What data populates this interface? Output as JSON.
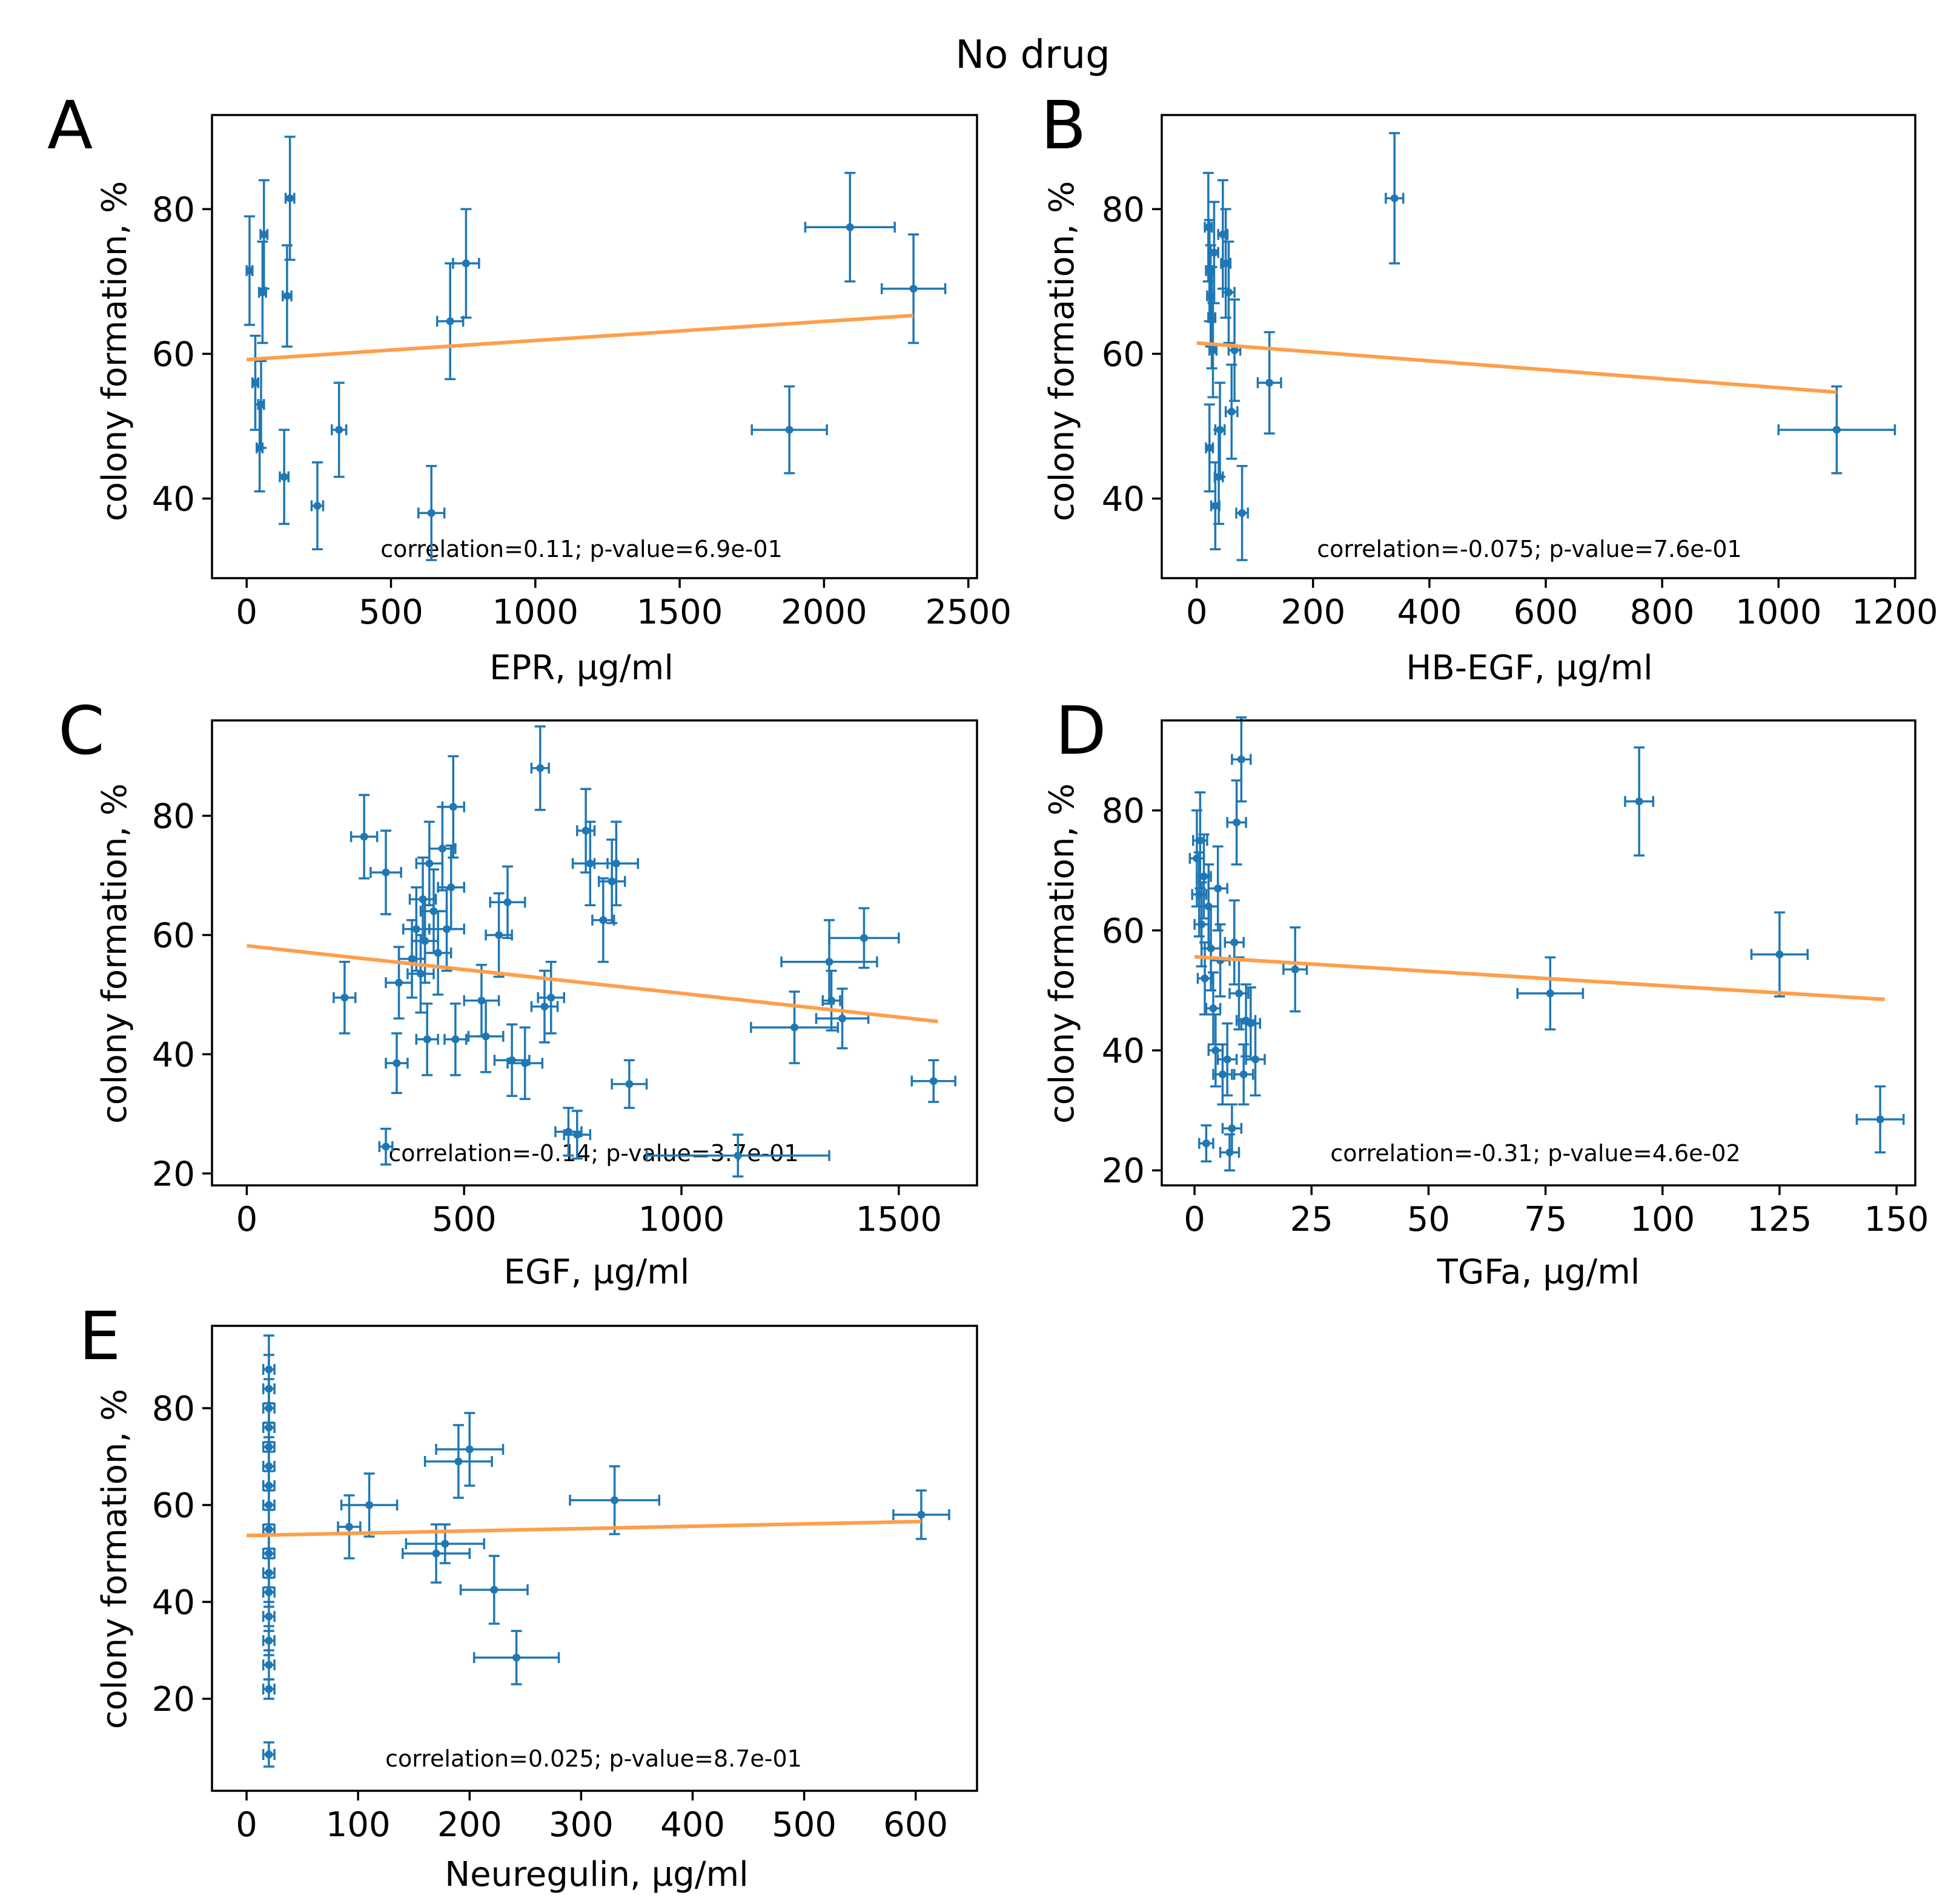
{
  "title": "No drug",
  "colors": {
    "points": "#1f77b4",
    "fit": "#ff9e4a",
    "frame": "#000000"
  },
  "chart_data": [
    {
      "panel": "A",
      "type": "scatter",
      "xlabel": "EPR, µg/ml",
      "ylabel": "colony formation, %",
      "xlim": [
        -120,
        2530
      ],
      "ylim": [
        29,
        93
      ],
      "xticks": [
        0,
        500,
        1000,
        1500,
        2000,
        2500
      ],
      "yticks": [
        40,
        60,
        80
      ],
      "annotation": "correlation=0.11; p-value=6.9e-01",
      "fit": [
        [
          0,
          59.2
        ],
        [
          2310,
          65.3
        ]
      ],
      "points": [
        {
          "x": 10,
          "y": 71.5,
          "xerr": 10,
          "yerr": 7.5
        },
        {
          "x": 30,
          "y": 56,
          "xerr": 10,
          "yerr": 6.5
        },
        {
          "x": 45,
          "y": 47,
          "xerr": 10,
          "yerr": 6
        },
        {
          "x": 50,
          "y": 53,
          "xerr": 10,
          "yerr": 6
        },
        {
          "x": 55,
          "y": 68.5,
          "xerr": 12,
          "yerr": 7
        },
        {
          "x": 60,
          "y": 76.5,
          "xerr": 12,
          "yerr": 7.5
        },
        {
          "x": 130,
          "y": 43,
          "xerr": 15,
          "yerr": 6.5
        },
        {
          "x": 140,
          "y": 68,
          "xerr": 15,
          "yerr": 7
        },
        {
          "x": 150,
          "y": 81.5,
          "xerr": 15,
          "yerr": 8.5
        },
        {
          "x": 245,
          "y": 39,
          "xerr": 20,
          "yerr": 6
        },
        {
          "x": 320,
          "y": 49.5,
          "xerr": 25,
          "yerr": 6.5
        },
        {
          "x": 640,
          "y": 38,
          "xerr": 45,
          "yerr": 6.5
        },
        {
          "x": 705,
          "y": 64.5,
          "xerr": 45,
          "yerr": 8
        },
        {
          "x": 760,
          "y": 72.5,
          "xerr": 45,
          "yerr": 7.5
        },
        {
          "x": 1880,
          "y": 49.5,
          "xerr": 130,
          "yerr": 6
        },
        {
          "x": 2090,
          "y": 77.5,
          "xerr": 155,
          "yerr": 7.5
        },
        {
          "x": 2310,
          "y": 69,
          "xerr": 110,
          "yerr": 7.5
        }
      ]
    },
    {
      "panel": "B",
      "type": "scatter",
      "xlabel": "HB-EGF, µg/ml",
      "ylabel": "colony formation, %",
      "xlim": [
        -60,
        1235
      ],
      "ylim": [
        29,
        93
      ],
      "xticks": [
        0,
        200,
        400,
        600,
        800,
        1000,
        1200
      ],
      "yticks": [
        40,
        60,
        80
      ],
      "annotation": "correlation=-0.075; p-value=7.6e-01",
      "fit": [
        [
          0,
          61.5
        ],
        [
          1100,
          54.7
        ]
      ],
      "points": [
        {
          "x": 20,
          "y": 77.5,
          "xerr": 6,
          "yerr": 7.5
        },
        {
          "x": 22,
          "y": 71.5,
          "xerr": 6,
          "yerr": 7
        },
        {
          "x": 24,
          "y": 68,
          "xerr": 6,
          "yerr": 7
        },
        {
          "x": 26,
          "y": 65,
          "xerr": 6,
          "yerr": 7
        },
        {
          "x": 28,
          "y": 60.5,
          "xerr": 6,
          "yerr": 6.5
        },
        {
          "x": 30,
          "y": 74,
          "xerr": 7,
          "yerr": 7
        },
        {
          "x": 22,
          "y": 47,
          "xerr": 6,
          "yerr": 6
        },
        {
          "x": 32,
          "y": 39,
          "xerr": 7,
          "yerr": 6
        },
        {
          "x": 38,
          "y": 43,
          "xerr": 7,
          "yerr": 6.5
        },
        {
          "x": 40,
          "y": 49.5,
          "xerr": 8,
          "yerr": 6.5
        },
        {
          "x": 45,
          "y": 76.5,
          "xerr": 8,
          "yerr": 7.5
        },
        {
          "x": 50,
          "y": 72.5,
          "xerr": 8,
          "yerr": 7.5
        },
        {
          "x": 55,
          "y": 68.5,
          "xerr": 10,
          "yerr": 7
        },
        {
          "x": 60,
          "y": 52,
          "xerr": 10,
          "yerr": 6.5
        },
        {
          "x": 65,
          "y": 60.5,
          "xerr": 10,
          "yerr": 7
        },
        {
          "x": 78,
          "y": 38,
          "xerr": 10,
          "yerr": 6.5
        },
        {
          "x": 125,
          "y": 56,
          "xerr": 20,
          "yerr": 7
        },
        {
          "x": 340,
          "y": 81.5,
          "xerr": 15,
          "yerr": 9
        },
        {
          "x": 1100,
          "y": 49.5,
          "xerr": 100,
          "yerr": 6
        }
      ]
    },
    {
      "panel": "C",
      "type": "scatter",
      "xlabel": "EGF, µg/ml",
      "ylabel": "colony formation, %",
      "xlim": [
        -80,
        1680
      ],
      "ylim": [
        18,
        96
      ],
      "xticks": [
        0,
        500,
        1000,
        1500
      ],
      "yticks": [
        20,
        40,
        60,
        80
      ],
      "annotation": "correlation=-0.14; p-value=3.7e-01",
      "fit": [
        [
          0,
          58.2
        ],
        [
          1590,
          45.5
        ]
      ],
      "points": [
        {
          "x": 225,
          "y": 49.5,
          "xerr": 25,
          "yerr": 6
        },
        {
          "x": 270,
          "y": 76.5,
          "xerr": 30,
          "yerr": 7
        },
        {
          "x": 320,
          "y": 70.5,
          "xerr": 35,
          "yerr": 7
        },
        {
          "x": 320,
          "y": 24.5,
          "xerr": 15,
          "yerr": 3
        },
        {
          "x": 345,
          "y": 38.5,
          "xerr": 25,
          "yerr": 5
        },
        {
          "x": 350,
          "y": 52,
          "xerr": 30,
          "yerr": 6
        },
        {
          "x": 380,
          "y": 56,
          "xerr": 30,
          "yerr": 6.5
        },
        {
          "x": 390,
          "y": 61,
          "xerr": 30,
          "yerr": 7
        },
        {
          "x": 400,
          "y": 53.5,
          "xerr": 30,
          "yerr": 6.5
        },
        {
          "x": 405,
          "y": 66,
          "xerr": 30,
          "yerr": 7
        },
        {
          "x": 410,
          "y": 59,
          "xerr": 30,
          "yerr": 7
        },
        {
          "x": 415,
          "y": 42.5,
          "xerr": 25,
          "yerr": 6
        },
        {
          "x": 420,
          "y": 72,
          "xerr": 30,
          "yerr": 7
        },
        {
          "x": 430,
          "y": 64,
          "xerr": 30,
          "yerr": 7
        },
        {
          "x": 440,
          "y": 57,
          "xerr": 30,
          "yerr": 7
        },
        {
          "x": 450,
          "y": 74.5,
          "xerr": 30,
          "yerr": 7
        },
        {
          "x": 460,
          "y": 61,
          "xerr": 40,
          "yerr": 7
        },
        {
          "x": 470,
          "y": 68,
          "xerr": 30,
          "yerr": 7
        },
        {
          "x": 475,
          "y": 81.5,
          "xerr": 25,
          "yerr": 8.5
        },
        {
          "x": 480,
          "y": 42.5,
          "xerr": 25,
          "yerr": 6
        },
        {
          "x": 540,
          "y": 49,
          "xerr": 40,
          "yerr": 6
        },
        {
          "x": 550,
          "y": 43,
          "xerr": 40,
          "yerr": 6
        },
        {
          "x": 580,
          "y": 60,
          "xerr": 30,
          "yerr": 7
        },
        {
          "x": 600,
          "y": 65.5,
          "xerr": 40,
          "yerr": 6
        },
        {
          "x": 610,
          "y": 39,
          "xerr": 40,
          "yerr": 6
        },
        {
          "x": 640,
          "y": 38.5,
          "xerr": 40,
          "yerr": 6
        },
        {
          "x": 675,
          "y": 88,
          "xerr": 20,
          "yerr": 7
        },
        {
          "x": 685,
          "y": 48,
          "xerr": 30,
          "yerr": 6
        },
        {
          "x": 700,
          "y": 49.5,
          "xerr": 30,
          "yerr": 6
        },
        {
          "x": 740,
          "y": 27,
          "xerr": 30,
          "yerr": 4
        },
        {
          "x": 760,
          "y": 26.5,
          "xerr": 30,
          "yerr": 4
        },
        {
          "x": 780,
          "y": 77.5,
          "xerr": 20,
          "yerr": 7
        },
        {
          "x": 790,
          "y": 72,
          "xerr": 40,
          "yerr": 7
        },
        {
          "x": 820,
          "y": 62.5,
          "xerr": 25,
          "yerr": 7
        },
        {
          "x": 840,
          "y": 69,
          "xerr": 30,
          "yerr": 7
        },
        {
          "x": 850,
          "y": 72,
          "xerr": 50,
          "yerr": 7
        },
        {
          "x": 880,
          "y": 35,
          "xerr": 40,
          "yerr": 4
        },
        {
          "x": 1130,
          "y": 23,
          "xerr": 210,
          "yerr": 3.5
        },
        {
          "x": 1260,
          "y": 44.5,
          "xerr": 100,
          "yerr": 6
        },
        {
          "x": 1340,
          "y": 55.5,
          "xerr": 110,
          "yerr": 7
        },
        {
          "x": 1345,
          "y": 49,
          "xerr": 20,
          "yerr": 5
        },
        {
          "x": 1370,
          "y": 46,
          "xerr": 60,
          "yerr": 5
        },
        {
          "x": 1420,
          "y": 59.5,
          "xerr": 80,
          "yerr": 5
        },
        {
          "x": 1580,
          "y": 35.5,
          "xerr": 50,
          "yerr": 3.5
        }
      ]
    },
    {
      "panel": "D",
      "type": "scatter",
      "xlabel": "TGFa, µg/ml",
      "ylabel": "colony formation, %",
      "xlim": [
        -7,
        154
      ],
      "ylim": [
        17.5,
        95
      ],
      "xticks": [
        0,
        25,
        50,
        75,
        100,
        125,
        150
      ],
      "yticks": [
        20,
        40,
        60,
        80
      ],
      "annotation": "correlation=-0.31; p-value=4.6e-02",
      "fit": [
        [
          0,
          55.6
        ],
        [
          147.5,
          48.5
        ]
      ],
      "points": [
        {
          "x": 0.5,
          "y": 72,
          "xerr": 1.5,
          "yerr": 8
        },
        {
          "x": 1,
          "y": 66,
          "xerr": 1.5,
          "yerr": 7
        },
        {
          "x": 1.2,
          "y": 75,
          "xerr": 1.5,
          "yerr": 8
        },
        {
          "x": 1.5,
          "y": 61,
          "xerr": 1.5,
          "yerr": 7
        },
        {
          "x": 2,
          "y": 69,
          "xerr": 1.5,
          "yerr": 7
        },
        {
          "x": 2.2,
          "y": 52,
          "xerr": 1.5,
          "yerr": 6
        },
        {
          "x": 2.5,
          "y": 24.5,
          "xerr": 1.5,
          "yerr": 3
        },
        {
          "x": 3,
          "y": 64,
          "xerr": 2,
          "yerr": 7
        },
        {
          "x": 3.5,
          "y": 57,
          "xerr": 2,
          "yerr": 7
        },
        {
          "x": 4,
          "y": 47,
          "xerr": 1.5,
          "yerr": 6
        },
        {
          "x": 4.5,
          "y": 40,
          "xerr": 1.5,
          "yerr": 6
        },
        {
          "x": 5,
          "y": 67,
          "xerr": 2,
          "yerr": 7
        },
        {
          "x": 5.5,
          "y": 55,
          "xerr": 2,
          "yerr": 6
        },
        {
          "x": 6,
          "y": 36,
          "xerr": 2,
          "yerr": 5
        },
        {
          "x": 7,
          "y": 38.5,
          "xerr": 2,
          "yerr": 6
        },
        {
          "x": 7.5,
          "y": 23,
          "xerr": 2,
          "yerr": 3
        },
        {
          "x": 8,
          "y": 27,
          "xerr": 2,
          "yerr": 4
        },
        {
          "x": 8.5,
          "y": 58,
          "xerr": 2,
          "yerr": 7
        },
        {
          "x": 9,
          "y": 78,
          "xerr": 2,
          "yerr": 7
        },
        {
          "x": 9.5,
          "y": 49.5,
          "xerr": 2,
          "yerr": 6
        },
        {
          "x": 10,
          "y": 88.5,
          "xerr": 2,
          "yerr": 7
        },
        {
          "x": 10.5,
          "y": 36,
          "xerr": 2,
          "yerr": 5
        },
        {
          "x": 11,
          "y": 45,
          "xerr": 2,
          "yerr": 6
        },
        {
          "x": 12,
          "y": 44.5,
          "xerr": 2,
          "yerr": 6
        },
        {
          "x": 13,
          "y": 38.5,
          "xerr": 2,
          "yerr": 6
        },
        {
          "x": 21.5,
          "y": 53.5,
          "xerr": 2.5,
          "yerr": 7
        },
        {
          "x": 76,
          "y": 49.5,
          "xerr": 7,
          "yerr": 6
        },
        {
          "x": 95,
          "y": 81.5,
          "xerr": 3,
          "yerr": 9
        },
        {
          "x": 125,
          "y": 56,
          "xerr": 6,
          "yerr": 7
        },
        {
          "x": 146.5,
          "y": 28.5,
          "xerr": 5,
          "yerr": 5.5
        }
      ]
    },
    {
      "panel": "E",
      "type": "scatter",
      "xlabel": "Neuregulin, µg/ml",
      "ylabel": "colony formation, %",
      "xlim": [
        -31,
        655
      ],
      "ylim": [
        1,
        97
      ],
      "xticks": [
        0,
        100,
        200,
        300,
        400,
        500,
        600
      ],
      "yticks": [
        20,
        40,
        60,
        80
      ],
      "annotation": "correlation=0.025; p-value=8.7e-01",
      "fit": [
        [
          0,
          53.7
        ],
        [
          605,
          56.6
        ]
      ],
      "points": [
        {
          "x": 20,
          "y": 8.5,
          "xerr": 5,
          "yerr": 2.5
        },
        {
          "x": 20,
          "y": 22,
          "xerr": 5,
          "yerr": 2
        },
        {
          "x": 20,
          "y": 27,
          "xerr": 5,
          "yerr": 3
        },
        {
          "x": 20,
          "y": 32,
          "xerr": 5,
          "yerr": 3
        },
        {
          "x": 20,
          "y": 37,
          "xerr": 5,
          "yerr": 3
        },
        {
          "x": 20,
          "y": 42,
          "xerr": 5,
          "yerr": 3
        },
        {
          "x": 20,
          "y": 46,
          "xerr": 5,
          "yerr": 3
        },
        {
          "x": 20,
          "y": 50,
          "xerr": 5,
          "yerr": 4
        },
        {
          "x": 20,
          "y": 55,
          "xerr": 5,
          "yerr": 4
        },
        {
          "x": 20,
          "y": 60,
          "xerr": 5,
          "yerr": 4
        },
        {
          "x": 20,
          "y": 64,
          "xerr": 5,
          "yerr": 4
        },
        {
          "x": 20,
          "y": 68,
          "xerr": 5,
          "yerr": 5
        },
        {
          "x": 20,
          "y": 72,
          "xerr": 5,
          "yerr": 5
        },
        {
          "x": 20,
          "y": 76,
          "xerr": 5,
          "yerr": 5
        },
        {
          "x": 20,
          "y": 80,
          "xerr": 5,
          "yerr": 6
        },
        {
          "x": 20,
          "y": 84,
          "xerr": 5,
          "yerr": 7
        },
        {
          "x": 20,
          "y": 88,
          "xerr": 5,
          "yerr": 7
        },
        {
          "x": 92,
          "y": 55.5,
          "xerr": 10,
          "yerr": 6.5
        },
        {
          "x": 110,
          "y": 60,
          "xerr": 25,
          "yerr": 6.5
        },
        {
          "x": 170,
          "y": 50,
          "xerr": 30,
          "yerr": 6
        },
        {
          "x": 178,
          "y": 52,
          "xerr": 35,
          "yerr": 4
        },
        {
          "x": 190,
          "y": 69,
          "xerr": 30,
          "yerr": 7.5
        },
        {
          "x": 200,
          "y": 71.5,
          "xerr": 30,
          "yerr": 7.5
        },
        {
          "x": 222,
          "y": 42.5,
          "xerr": 30,
          "yerr": 7
        },
        {
          "x": 242,
          "y": 28.5,
          "xerr": 38,
          "yerr": 5.5
        },
        {
          "x": 330,
          "y": 61,
          "xerr": 40,
          "yerr": 7
        },
        {
          "x": 605,
          "y": 58,
          "xerr": 25,
          "yerr": 5
        }
      ]
    }
  ]
}
